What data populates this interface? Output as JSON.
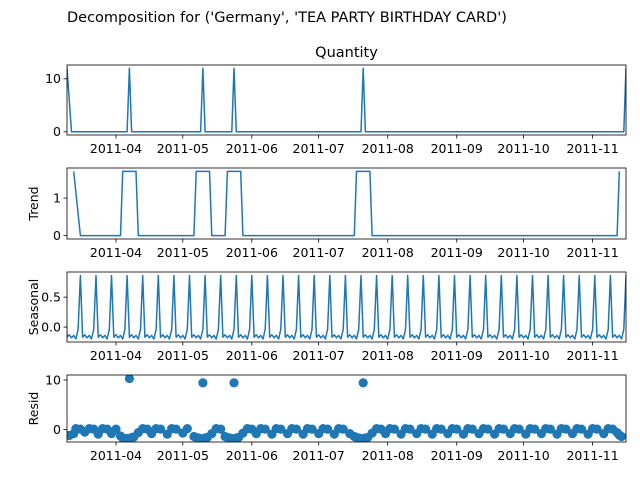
{
  "title": "Decomposition for ('Germany', 'TEA PARTY BIRTHDAY CARD')",
  "color": "#1f77b4",
  "x_ticks": [
    "2011-04",
    "2011-05",
    "2011-06",
    "2011-07",
    "2011-08",
    "2011-09",
    "2011-10",
    "2011-11"
  ],
  "chart_data": [
    {
      "type": "line",
      "title": "Quantity",
      "ylabel": "",
      "xlim": [
        "2011-03-10",
        "2011-11-16"
      ],
      "ylim": [
        -0.6,
        12.6
      ],
      "yticks": [
        0,
        10
      ],
      "x": [
        "2011-03-10",
        "2011-03-12",
        "2011-04-06",
        "2011-04-07",
        "2011-04-08",
        "2011-05-09",
        "2011-05-10",
        "2011-05-11",
        "2011-05-23",
        "2011-05-24",
        "2011-05-25",
        "2011-07-20",
        "2011-07-21",
        "2011-07-22",
        "2011-11-15",
        "2011-11-16"
      ],
      "y": [
        12,
        0,
        0,
        12,
        0,
        0,
        12,
        0,
        0,
        12,
        0,
        0,
        12,
        0,
        0,
        12
      ]
    },
    {
      "type": "line",
      "title": "",
      "ylabel": "Trend",
      "xlim": [
        "2011-03-10",
        "2011-11-16"
      ],
      "ylim": [
        -0.09,
        1.8
      ],
      "yticks": [
        0,
        1
      ],
      "x": [
        "2011-03-13",
        "2011-03-16",
        "2011-04-03",
        "2011-04-04",
        "2011-04-10",
        "2011-04-11",
        "2011-05-06",
        "2011-05-07",
        "2011-05-13",
        "2011-05-14",
        "2011-05-20",
        "2011-05-21",
        "2011-05-27",
        "2011-05-28",
        "2011-07-17",
        "2011-07-18",
        "2011-07-24",
        "2011-07-25",
        "2011-11-12",
        "2011-11-13"
      ],
      "y": [
        1.71,
        0,
        0,
        1.71,
        1.71,
        0,
        0,
        1.71,
        1.71,
        0,
        0,
        1.71,
        1.71,
        0,
        0,
        1.71,
        1.71,
        0,
        0,
        1.71
      ]
    },
    {
      "type": "line",
      "title": "",
      "ylabel": "Seasonal",
      "xlim": [
        "2011-03-10",
        "2011-11-16"
      ],
      "ylim": [
        -0.25,
        0.92
      ],
      "yticks": [
        0.0,
        0.5
      ],
      "pattern_period_days": 7,
      "pattern_values": [
        0.86,
        -0.17,
        -0.13,
        -0.18,
        -0.14,
        -0.2,
        -0.04
      ],
      "first_peak": "2011-03-16"
    },
    {
      "type": "scatter",
      "title": "",
      "ylabel": "Resid",
      "xlim": [
        "2011-03-10",
        "2011-11-16"
      ],
      "ylim": [
        -2.5,
        11.0
      ],
      "yticks": [
        0,
        10
      ],
      "points": [
        [
          "2011-03-11",
          -1.2
        ],
        [
          "2011-03-13",
          -0.8
        ],
        [
          "2011-03-14",
          0.2
        ],
        [
          "2011-03-16",
          0.1
        ],
        [
          "2011-03-18",
          -0.5
        ],
        [
          "2011-03-20",
          0.2
        ],
        [
          "2011-03-22",
          0.1
        ],
        [
          "2011-03-24",
          -0.9
        ],
        [
          "2011-03-26",
          0.2
        ],
        [
          "2011-03-28",
          0.1
        ],
        [
          "2011-03-30",
          -0.8
        ],
        [
          "2011-04-01",
          0.1
        ],
        [
          "2011-04-03",
          -1.3
        ],
        [
          "2011-04-04",
          -1.7
        ],
        [
          "2011-04-05",
          -1.8
        ],
        [
          "2011-04-06",
          -1.8
        ],
        [
          "2011-04-07",
          10.3
        ],
        [
          "2011-04-08",
          -1.6
        ],
        [
          "2011-04-09",
          -1.5
        ],
        [
          "2011-04-11",
          -0.6
        ],
        [
          "2011-04-13",
          0.2
        ],
        [
          "2011-04-15",
          0.1
        ],
        [
          "2011-04-17",
          -0.8
        ],
        [
          "2011-04-19",
          0.2
        ],
        [
          "2011-04-21",
          0.1
        ],
        [
          "2011-04-24",
          -0.9
        ],
        [
          "2011-04-26",
          0.2
        ],
        [
          "2011-04-28",
          0.1
        ],
        [
          "2011-05-01",
          -0.7
        ],
        [
          "2011-05-03",
          0.2
        ],
        [
          "2011-05-06",
          -1.4
        ],
        [
          "2011-05-07",
          -1.6
        ],
        [
          "2011-05-08",
          -1.7
        ],
        [
          "2011-05-09",
          -1.8
        ],
        [
          "2011-05-10",
          9.4
        ],
        [
          "2011-05-11",
          -1.7
        ],
        [
          "2011-05-12",
          -1.6
        ],
        [
          "2011-05-14",
          -0.8
        ],
        [
          "2011-05-16",
          0.2
        ],
        [
          "2011-05-18",
          0.1
        ],
        [
          "2011-05-20",
          -1.4
        ],
        [
          "2011-05-21",
          -1.6
        ],
        [
          "2011-05-22",
          -1.7
        ],
        [
          "2011-05-23",
          -1.8
        ],
        [
          "2011-05-24",
          9.4
        ],
        [
          "2011-05-25",
          -1.7
        ],
        [
          "2011-05-26",
          -1.6
        ],
        [
          "2011-05-28",
          -0.7
        ],
        [
          "2011-05-30",
          0.2
        ],
        [
          "2011-06-01",
          0.1
        ],
        [
          "2011-06-03",
          -0.8
        ],
        [
          "2011-06-05",
          0.2
        ],
        [
          "2011-06-07",
          0.1
        ],
        [
          "2011-06-10",
          -0.9
        ],
        [
          "2011-06-12",
          0.2
        ],
        [
          "2011-06-14",
          0.1
        ],
        [
          "2011-06-17",
          -0.8
        ],
        [
          "2011-06-19",
          0.2
        ],
        [
          "2011-06-21",
          0.1
        ],
        [
          "2011-06-24",
          -0.9
        ],
        [
          "2011-06-26",
          0.2
        ],
        [
          "2011-06-28",
          0.1
        ],
        [
          "2011-07-01",
          -0.8
        ],
        [
          "2011-07-03",
          0.2
        ],
        [
          "2011-07-05",
          0.1
        ],
        [
          "2011-07-08",
          -0.9
        ],
        [
          "2011-07-10",
          0.2
        ],
        [
          "2011-07-12",
          0.1
        ],
        [
          "2011-07-15",
          -0.8
        ],
        [
          "2011-07-17",
          -1.4
        ],
        [
          "2011-07-18",
          -1.6
        ],
        [
          "2011-07-19",
          -1.7
        ],
        [
          "2011-07-20",
          -1.8
        ],
        [
          "2011-07-21",
          9.4
        ],
        [
          "2011-07-22",
          -1.7
        ],
        [
          "2011-07-23",
          -1.6
        ],
        [
          "2011-07-25",
          -0.7
        ],
        [
          "2011-07-27",
          0.2
        ],
        [
          "2011-07-29",
          0.1
        ],
        [
          "2011-07-31",
          -0.8
        ],
        [
          "2011-08-02",
          0.2
        ],
        [
          "2011-08-04",
          0.1
        ],
        [
          "2011-08-07",
          -0.9
        ],
        [
          "2011-08-09",
          0.2
        ],
        [
          "2011-08-11",
          0.1
        ],
        [
          "2011-08-14",
          -0.8
        ],
        [
          "2011-08-16",
          0.2
        ],
        [
          "2011-08-18",
          0.1
        ],
        [
          "2011-08-21",
          -0.9
        ],
        [
          "2011-08-23",
          0.2
        ],
        [
          "2011-08-25",
          0.1
        ],
        [
          "2011-08-28",
          -0.8
        ],
        [
          "2011-08-30",
          0.2
        ],
        [
          "2011-09-01",
          0.1
        ],
        [
          "2011-09-04",
          -0.9
        ],
        [
          "2011-09-06",
          0.2
        ],
        [
          "2011-09-08",
          0.1
        ],
        [
          "2011-09-11",
          -0.8
        ],
        [
          "2011-09-13",
          0.2
        ],
        [
          "2011-09-15",
          0.1
        ],
        [
          "2011-09-18",
          -0.9
        ],
        [
          "2011-09-20",
          0.2
        ],
        [
          "2011-09-22",
          0.1
        ],
        [
          "2011-09-25",
          -0.8
        ],
        [
          "2011-09-27",
          0.2
        ],
        [
          "2011-09-29",
          0.1
        ],
        [
          "2011-10-02",
          -0.9
        ],
        [
          "2011-10-04",
          0.2
        ],
        [
          "2011-10-06",
          0.1
        ],
        [
          "2011-10-09",
          -0.8
        ],
        [
          "2011-10-11",
          0.2
        ],
        [
          "2011-10-13",
          0.1
        ],
        [
          "2011-10-16",
          -0.9
        ],
        [
          "2011-10-18",
          0.2
        ],
        [
          "2011-10-20",
          0.1
        ],
        [
          "2011-10-23",
          -0.8
        ],
        [
          "2011-10-25",
          0.2
        ],
        [
          "2011-10-27",
          0.1
        ],
        [
          "2011-10-30",
          -0.9
        ],
        [
          "2011-11-01",
          0.2
        ],
        [
          "2011-11-03",
          0.1
        ],
        [
          "2011-11-06",
          -0.8
        ],
        [
          "2011-11-08",
          0.2
        ],
        [
          "2011-11-10",
          0.1
        ],
        [
          "2011-11-12",
          -0.6
        ],
        [
          "2011-11-13",
          -1.1
        ],
        [
          "2011-11-14",
          -1.4
        ]
      ]
    }
  ]
}
